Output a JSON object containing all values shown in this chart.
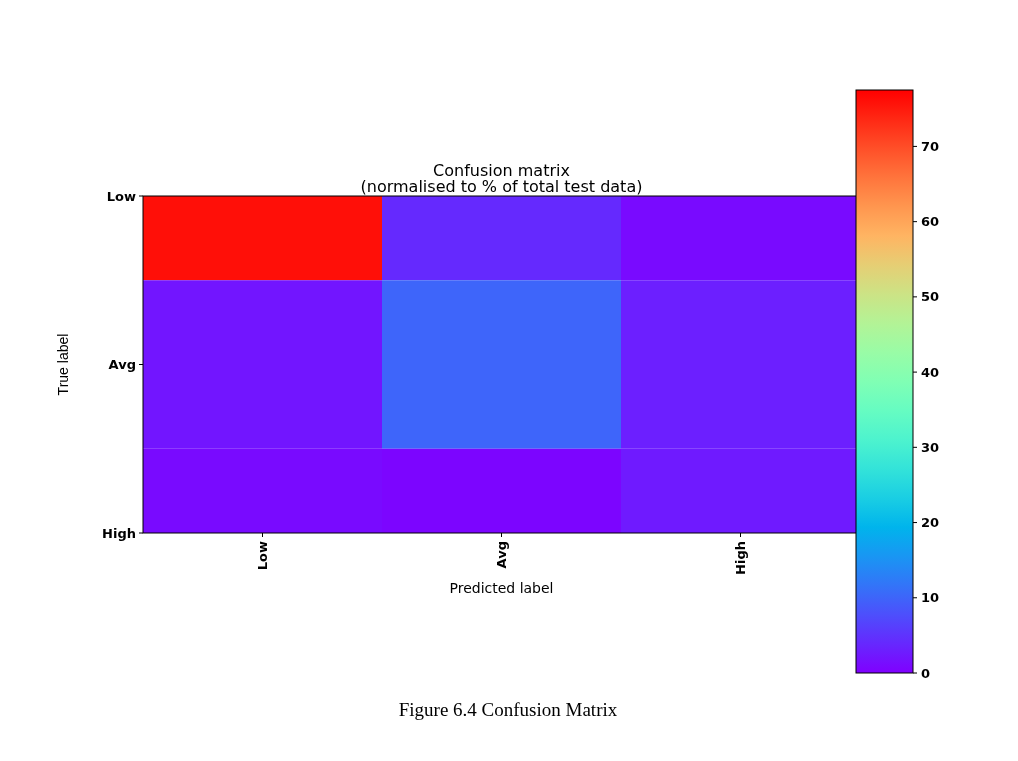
{
  "chart_data": {
    "type": "heatmap",
    "title": "Confusion matrix",
    "subtitle": "(normalised to % of total test data)",
    "xlabel": "Predicted label",
    "ylabel": "True label",
    "categories": [
      "Low",
      "Avg",
      "High"
    ],
    "y_categories": [
      "Low",
      "Avg",
      "High"
    ],
    "cells": [
      [
        76,
        4,
        1
      ],
      [
        2,
        10,
        3
      ],
      [
        1,
        0.5,
        2.5
      ]
    ],
    "clim": [
      0,
      77.5
    ],
    "cticks": [
      0,
      10,
      20,
      30,
      40,
      50,
      60,
      70
    ],
    "annotations": [
      "Figure 6.4 Confusion Matrix"
    ]
  }
}
